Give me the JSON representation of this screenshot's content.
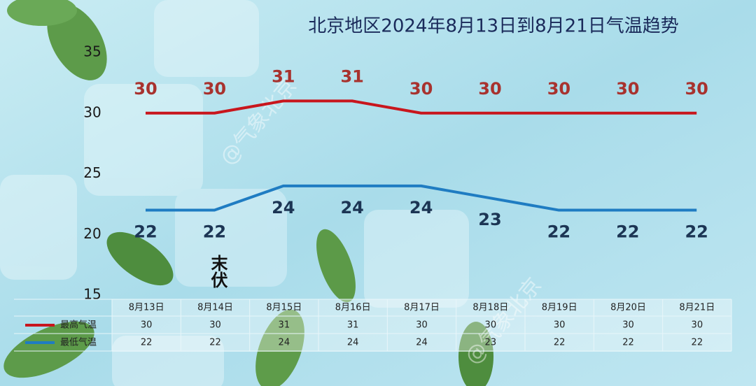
{
  "chart_data": {
    "type": "line",
    "title": "北京地区2024年8月13日到8月21日气温趋势",
    "categories": [
      "8月13日",
      "8月14日",
      "8月15日",
      "8月16日",
      "8月17日",
      "8月18日",
      "8月19日",
      "8月20日",
      "8月21日"
    ],
    "series": [
      {
        "name": "最高气温",
        "color": "#c8161d",
        "label_color": "#a8322e",
        "values": [
          30,
          30,
          31,
          31,
          30,
          30,
          30,
          30,
          30
        ]
      },
      {
        "name": "最低气温",
        "color": "#1f7cc2",
        "label_color": "#1c3554",
        "values": [
          22,
          22,
          24,
          24,
          24,
          23,
          22,
          22,
          22
        ]
      }
    ],
    "ylim": [
      15,
      35
    ],
    "yticks": [
      15,
      20,
      25,
      30,
      35
    ],
    "grid": false,
    "annotation": "末伏",
    "watermark": "@气象北京"
  }
}
